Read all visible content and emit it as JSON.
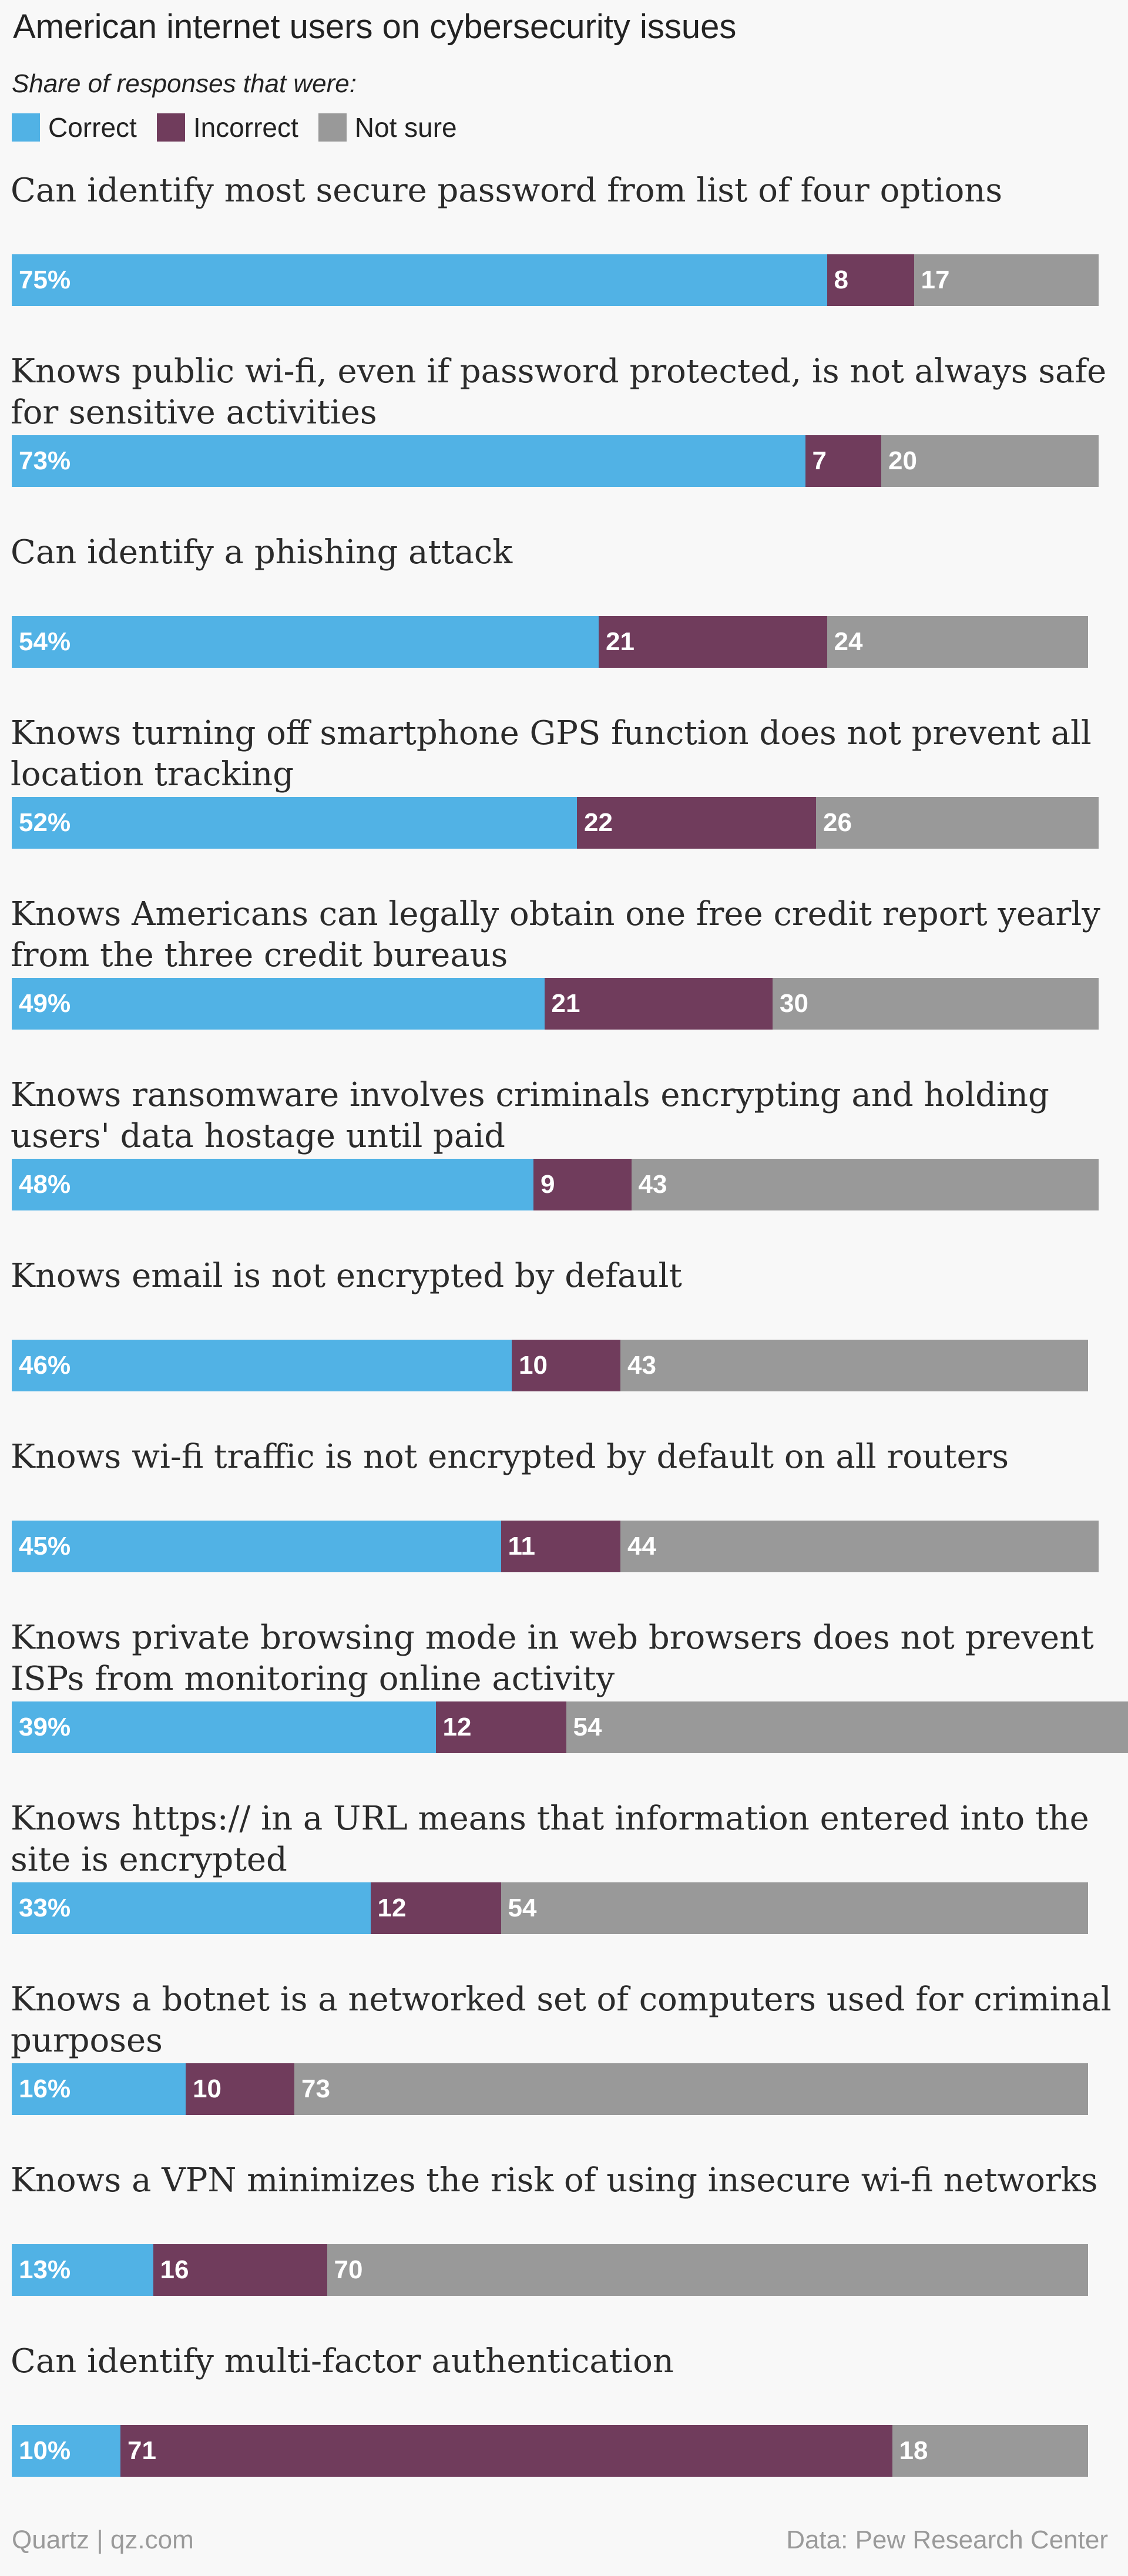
{
  "footer": {
    "source": "Quartz | qz.com",
    "credit": "Data: Pew Research Center"
  },
  "chart_data": {
    "type": "bar",
    "orientation": "horizontal",
    "stacked": true,
    "title": "American internet users on cybersecurity issues",
    "subtitle": "Share of responses that were:",
    "legend": {
      "placement": "top-left"
    },
    "grid": false,
    "xlim": [
      0,
      100
    ],
    "categories": [
      "Can identify most secure password from list of four options",
      "Knows public wi-fi, even if password protected, is not always safe for sensitive activities",
      "Can identify a phishing attack",
      "Knows turning off smartphone GPS function does not prevent all location tracking",
      "Knows Americans can legally obtain one free credit report yearly from the three credit bureaus",
      "Knows ransomware involves criminals encrypting and holding users' data hostage until paid",
      "Knows email is not encrypted by default",
      "Knows wi-fi traffic is not encrypted by default on all routers",
      "Knows private browsing mode in web browsers does not prevent ISPs from monitoring online activity",
      "Knows https:// in a URL means that information entered into the site is encrypted",
      "Knows a botnet is a networked set of computers used for criminal purposes",
      "Knows a VPN minimizes the risk of using insecure wi-fi networks",
      "Can identify multi-factor authentication"
    ],
    "series": [
      {
        "name": "Correct",
        "color": "#51b2e5",
        "values": [
          75,
          73,
          54,
          52,
          49,
          48,
          46,
          45,
          39,
          33,
          16,
          13,
          10
        ],
        "labels": [
          "75%",
          "73%",
          "54%",
          "52%",
          "49%",
          "48%",
          "46%",
          "45%",
          "39%",
          "33%",
          "16%",
          "13%",
          "10%"
        ]
      },
      {
        "name": "Incorrect",
        "color": "#703c5c",
        "values": [
          8,
          7,
          21,
          22,
          21,
          9,
          10,
          11,
          12,
          12,
          10,
          16,
          71
        ],
        "labels": [
          "8",
          "7",
          "21",
          "22",
          "21",
          "9",
          "10",
          "11",
          "12",
          "12",
          "10",
          "16",
          "71"
        ]
      },
      {
        "name": "Not sure",
        "color": "#999999",
        "values": [
          17,
          20,
          24,
          26,
          30,
          43,
          43,
          44,
          54,
          54,
          73,
          70,
          18
        ],
        "labels": [
          "17",
          "20",
          "24",
          "26",
          "30",
          "43",
          "43",
          "44",
          "54",
          "54",
          "73",
          "70",
          "18"
        ]
      }
    ]
  }
}
